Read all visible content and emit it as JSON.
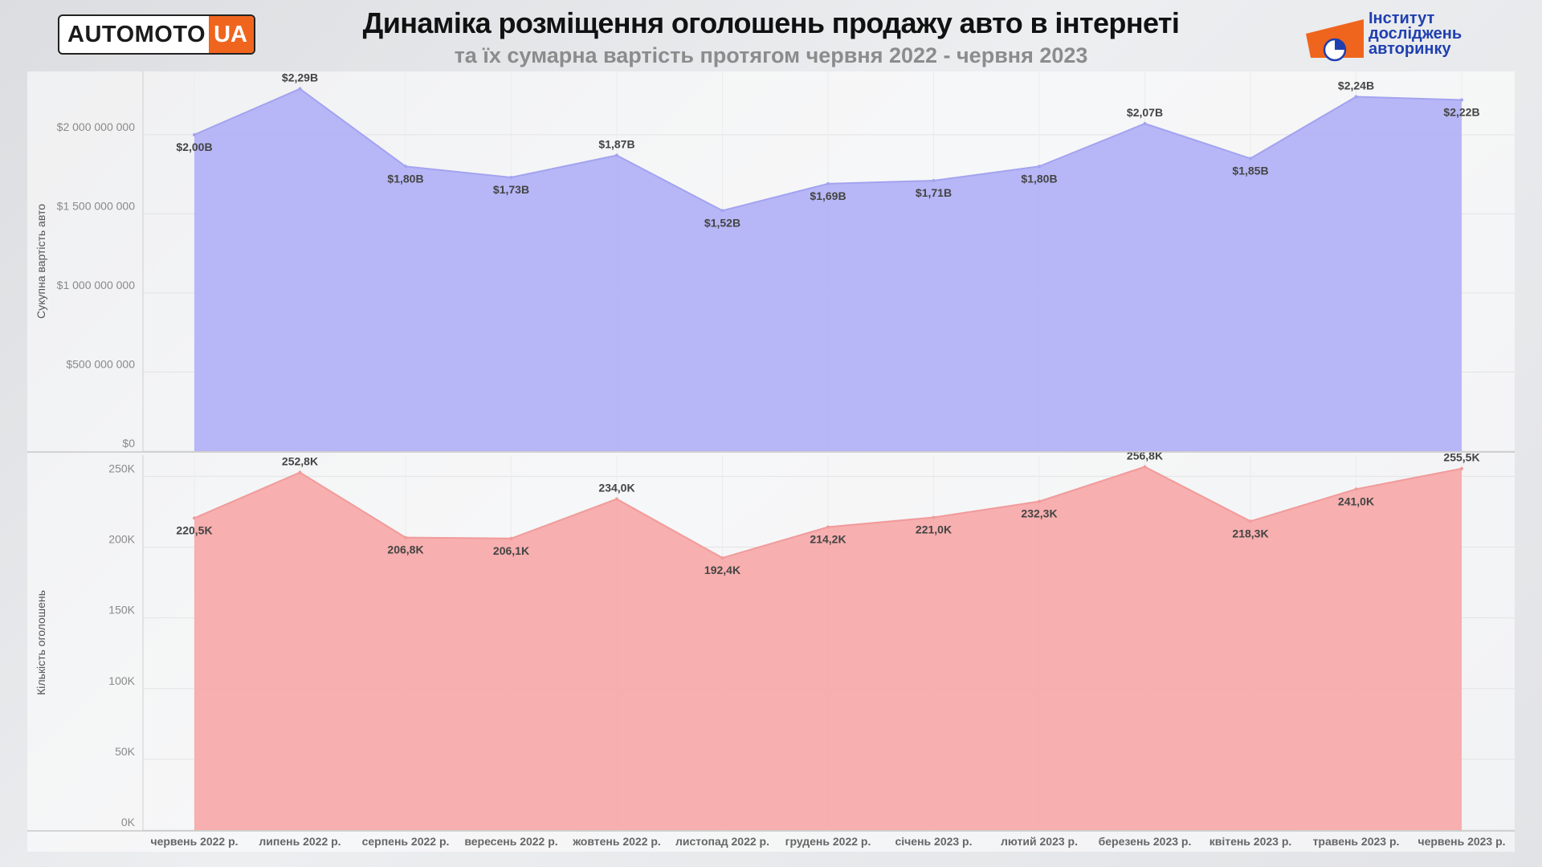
{
  "header": {
    "title": "Динаміка розміщення оголошень продажу авто в інтернеті",
    "subtitle": "та їх сумарна вартість протягом червня 2022 - червня 2023",
    "logo_main": "AUTOMOTO",
    "logo_accent": "UA",
    "institute_line1": "Інститут",
    "institute_line2": "досліджень",
    "institute_line3": "авторинку"
  },
  "colors": {
    "value_area": "#b3b3f7",
    "value_line": "#a3a3f0",
    "count_area": "#f7abab",
    "count_line": "#f19b9b",
    "brand_orange": "#f0651e",
    "institute_blue": "#1f3fb0"
  },
  "chart_data": [
    {
      "type": "area",
      "ylabel": "Сукупна вартість авто",
      "ylim": [
        0,
        2400000000
      ],
      "y_ticks": [
        0,
        500000000,
        1000000000,
        1500000000,
        2000000000
      ],
      "y_tick_labels": [
        "$0",
        "$500 000 000",
        "$1 000 000 000",
        "$1 500 000 000",
        "$2 000 000 000"
      ],
      "grid": true,
      "categories": [
        "червень 2022 р.",
        "липень 2022 р.",
        "серпень 2022 р.",
        "вересень 2022 р.",
        "жовтень 2022 р.",
        "листопад 2022 р.",
        "грудень 2022 р.",
        "січень 2023 р.",
        "лютий 2023 р.",
        "березень 2023 р.",
        "квітень 2023 р.",
        "травень 2023 р.",
        "червень 2023 р."
      ],
      "values": [
        2000000000,
        2290000000,
        1800000000,
        1730000000,
        1870000000,
        1520000000,
        1690000000,
        1710000000,
        1800000000,
        2070000000,
        1850000000,
        2240000000,
        2220000000
      ],
      "data_labels": [
        "$2,00B",
        "$2,29B",
        "$1,80B",
        "$1,73B",
        "$1,87B",
        "$1,52B",
        "$1,69B",
        "$1,71B",
        "$1,80B",
        "$2,07B",
        "$1,85B",
        "$2,24B",
        "$2,22B"
      ]
    },
    {
      "type": "area",
      "ylabel": "Кількість оголошень",
      "ylim": [
        0,
        265000
      ],
      "y_ticks": [
        0,
        50000,
        100000,
        150000,
        200000,
        250000
      ],
      "y_tick_labels": [
        "0K",
        "50K",
        "100K",
        "150K",
        "200K",
        "250K"
      ],
      "grid": true,
      "categories": [
        "червень 2022 р.",
        "липень 2022 р.",
        "серпень 2022 р.",
        "вересень 2022 р.",
        "жовтень 2022 р.",
        "листопад 2022 р.",
        "грудень 2022 р.",
        "січень 2023 р.",
        "лютий 2023 р.",
        "березень 2023 р.",
        "квітень 2023 р.",
        "травень 2023 р.",
        "червень 2023 р."
      ],
      "values": [
        220500,
        252800,
        206800,
        206100,
        234000,
        192400,
        214200,
        221000,
        232300,
        256800,
        218300,
        241000,
        255500
      ],
      "data_labels": [
        "220,5K",
        "252,8K",
        "206,8K",
        "206,1K",
        "234,0K",
        "192,4K",
        "214,2K",
        "221,0K",
        "232,3K",
        "256,8K",
        "218,3K",
        "241,0K",
        "255,5K"
      ]
    }
  ]
}
